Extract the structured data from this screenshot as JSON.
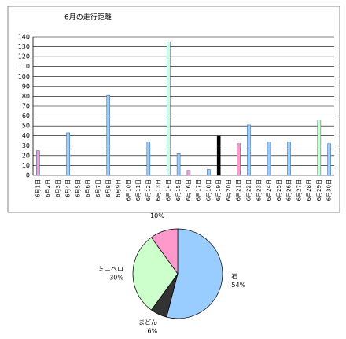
{
  "chart_data": [
    {
      "type": "bar",
      "title": "6月の走行距離",
      "categories": [
        "6月1日",
        "6月2日",
        "6月3日",
        "6月4日",
        "6月5日",
        "6月6日",
        "6月7日",
        "6月8日",
        "6月9日",
        "6月10日",
        "6月11日",
        "6月12日",
        "6月13日",
        "6月14日",
        "6月15日",
        "6月16日",
        "6月17日",
        "6月18日",
        "6月19日",
        "6月20日",
        "6月21日",
        "6月22日",
        "6月23日",
        "6月24日",
        "6月25日",
        "6月26日",
        "6月27日",
        "6月28日",
        "6月29日",
        "6月30日"
      ],
      "values": [
        25,
        0,
        0,
        43,
        0,
        0,
        0,
        81,
        0,
        0,
        0,
        34,
        0,
        135,
        22,
        5,
        0,
        6,
        40,
        0,
        32,
        51,
        0,
        34,
        0,
        34,
        0,
        0,
        56,
        32
      ],
      "colors": [
        "#ff99cc",
        "#99ccff",
        "#99ccff",
        "#99ccff",
        "#99ccff",
        "#99ccff",
        "#99ccff",
        "#99ccff",
        "#99ccff",
        "#99ccff",
        "#99ccff",
        "#99ccff",
        "#99ccff",
        "#ccffcc",
        "#99ccff",
        "#ff99cc",
        "#99ccff",
        "#99ccff",
        "#000000",
        "#99ccff",
        "#ff99cc",
        "#99ccff",
        "#99ccff",
        "#99ccff",
        "#99ccff",
        "#99ccff",
        "#99ccff",
        "#99ccff",
        "#ccffcc",
        "#99ccff"
      ],
      "ylim": [
        0,
        140
      ],
      "yticks": [
        0,
        10,
        20,
        30,
        40,
        50,
        60,
        70,
        80,
        90,
        100,
        110,
        120,
        130,
        140
      ],
      "grid": true
    },
    {
      "type": "pie",
      "categories": [
        "石",
        "まどん",
        "ミニベロ",
        null
      ],
      "values": [
        54,
        6,
        30,
        10
      ],
      "value_labels": [
        "54%",
        "6%",
        "30%",
        "10%"
      ],
      "colors": [
        "#99ccff",
        "#333333",
        "#ccffcc",
        "#ff99cc"
      ]
    }
  ]
}
